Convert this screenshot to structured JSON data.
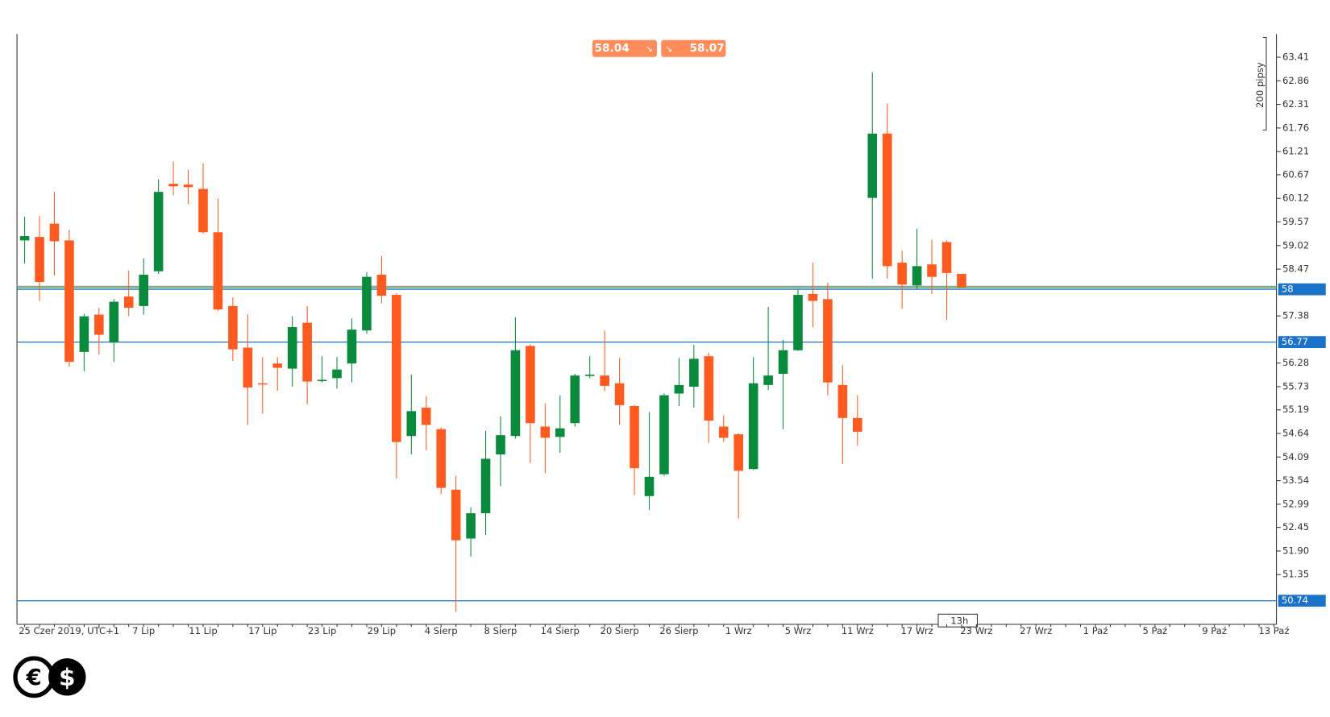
{
  "chart_data": {
    "type": "candlestick",
    "categories": [
      "25 Czer 2019, UTC+1",
      null,
      null,
      null,
      null,
      null,
      null,
      null,
      "7 Lip",
      null,
      null,
      null,
      "11 Lip",
      null,
      null,
      null,
      "17 Lip",
      null,
      null,
      null,
      "23 Lip",
      null,
      null,
      null,
      "29 Lip",
      null,
      null,
      null,
      "4 Sierp",
      null,
      null,
      null,
      "8 Sierp",
      null,
      null,
      null,
      "14 Sierp",
      null,
      null,
      null,
      "20 Sierp",
      null,
      null,
      null,
      "26 Sierp",
      null,
      null,
      null,
      "1 Wrz",
      null,
      null,
      null,
      "5 Wrz",
      null,
      null,
      null,
      "11 Wrz",
      null,
      null,
      null,
      "17 Wrz",
      null,
      null,
      null,
      "23 Wrz",
      null,
      null,
      null,
      "27 Wrz",
      null,
      null,
      null,
      "1 Paź",
      null,
      null,
      null,
      "5 Paź",
      null,
      null,
      null,
      "9 Paź",
      null,
      null,
      null,
      "13 Paź"
    ],
    "open": [
      59.14,
      59.22,
      59.53,
      59.14,
      56.54,
      57.41,
      56.76,
      57.83,
      57.61,
      58.42,
      60.46,
      60.44,
      60.34,
      59.33,
      57.61,
      56.64,
      55.81,
      56.27,
      56.15,
      57.22,
      55.87,
      55.93,
      56.27,
      57.04,
      58.34,
      57.87,
      54.58,
      55.24,
      54.74,
      53.33,
      52.19,
      52.78,
      54.15,
      54.58,
      56.68,
      54.8,
      54.56,
      54.88,
      55.99,
      55.99,
      55.81,
      55.28,
      53.18,
      53.69,
      55.57,
      55.73,
      56.44,
      54.8,
      54.62,
      53.81,
      55.77,
      56.03,
      56.58,
      57.89,
      57.77,
      55.77,
      55.0,
      60.13,
      61.63,
      58.62,
      58.09,
      58.58,
      59.1,
      58.36,
      null,
      null,
      null,
      null,
      null,
      null,
      null,
      null,
      null,
      null,
      null,
      null,
      null,
      null,
      null,
      null,
      null,
      null,
      null,
      null,
      null
    ],
    "high": [
      59.69,
      59.71,
      60.27,
      59.39,
      57.43,
      57.57,
      57.77,
      58.44,
      58.72,
      60.56,
      60.98,
      60.78,
      60.94,
      60.11,
      57.81,
      57.41,
      56.42,
      56.42,
      57.37,
      57.61,
      56.44,
      56.42,
      57.32,
      58.4,
      58.78,
      57.91,
      56.01,
      55.51,
      54.78,
      53.65,
      52.92,
      54.7,
      55.04,
      57.35,
      56.72,
      55.34,
      55.53,
      56.03,
      56.44,
      57.04,
      56.4,
      55.3,
      55.14,
      55.57,
      56.4,
      56.7,
      56.52,
      55.06,
      54.64,
      56.42,
      57.59,
      56.82,
      58.01,
      58.62,
      58.15,
      56.23,
      55.53,
      63.06,
      62.32,
      58.9,
      59.41,
      59.16,
      59.14,
      58.36,
      null,
      null,
      null,
      null,
      null,
      null,
      null,
      null,
      null,
      null,
      null,
      null,
      null,
      null,
      null,
      null,
      null,
      null,
      null,
      null,
      null
    ],
    "low": [
      58.6,
      57.73,
      58.32,
      56.19,
      56.09,
      56.48,
      56.31,
      57.37,
      57.41,
      58.36,
      60.19,
      59.99,
      59.3,
      57.49,
      56.33,
      54.84,
      55.1,
      55.63,
      55.73,
      55.32,
      55.83,
      55.69,
      55.83,
      56.96,
      57.67,
      53.59,
      54.15,
      54.25,
      53.22,
      50.48,
      51.77,
      52.27,
      53.41,
      54.52,
      53.95,
      53.71,
      54.19,
      54.8,
      55.93,
      55.63,
      54.84,
      53.2,
      52.86,
      53.65,
      55.28,
      55.24,
      54.42,
      54.44,
      52.66,
      53.79,
      55.65,
      54.74,
      56.56,
      57.12,
      55.53,
      53.93,
      54.36,
      58.25,
      58.25,
      57.55,
      58.01,
      57.89,
      57.29,
      58.03,
      null,
      null,
      null,
      null,
      null,
      null,
      null,
      null,
      null,
      null,
      null,
      null,
      null,
      null,
      null,
      null,
      null,
      null,
      null,
      null,
      null
    ],
    "close": [
      59.24,
      58.17,
      59.12,
      56.31,
      57.37,
      56.94,
      57.71,
      57.57,
      58.34,
      60.27,
      60.4,
      60.38,
      59.33,
      57.53,
      56.6,
      55.71,
      55.79,
      56.17,
      57.12,
      55.85,
      55.89,
      56.13,
      57.06,
      58.29,
      57.85,
      54.44,
      55.16,
      54.84,
      53.37,
      52.15,
      52.78,
      54.05,
      54.6,
      56.58,
      54.88,
      54.54,
      54.76,
      55.99,
      56.01,
      55.75,
      55.3,
      53.83,
      53.63,
      55.53,
      55.77,
      56.38,
      54.94,
      54.54,
      53.77,
      55.81,
      55.99,
      56.58,
      57.87,
      57.73,
      55.83,
      55.0,
      54.68,
      61.63,
      58.54,
      58.11,
      58.54,
      58.29,
      58.38,
      58.05,
      null,
      null,
      null,
      null,
      null,
      null,
      null,
      null,
      null,
      null,
      null,
      null,
      null,
      null,
      null,
      null,
      null,
      null,
      null,
      null,
      null
    ],
    "up_color": "#0a8a3c",
    "down_color": "#ff5a1f",
    "ylim": [
      50.19,
      63.95
    ],
    "yticks": [
      63.41,
      62.86,
      62.31,
      61.76,
      61.21,
      60.67,
      60.12,
      59.57,
      59.02,
      58.47,
      57.38,
      56.28,
      55.73,
      55.19,
      54.64,
      54.09,
      53.54,
      52.99,
      52.45,
      {
        "value": 51.9,
        "label": "51.90"
      },
      51.35
    ],
    "levels": [
      {
        "value": 58,
        "color": "#1a73c8"
      },
      {
        "value": 56.77,
        "color": "#1a73c8"
      },
      {
        "value": 50.74,
        "color": "#1a73c8"
      }
    ],
    "quotes": [
      {
        "value": 58.04,
        "color": "#3a9a4a"
      },
      {
        "value": 58.07,
        "color": "#999999"
      }
    ],
    "scale_label": "200 pipsy",
    "timeframe": "13h",
    "logo": [
      "€",
      "$"
    ]
  }
}
